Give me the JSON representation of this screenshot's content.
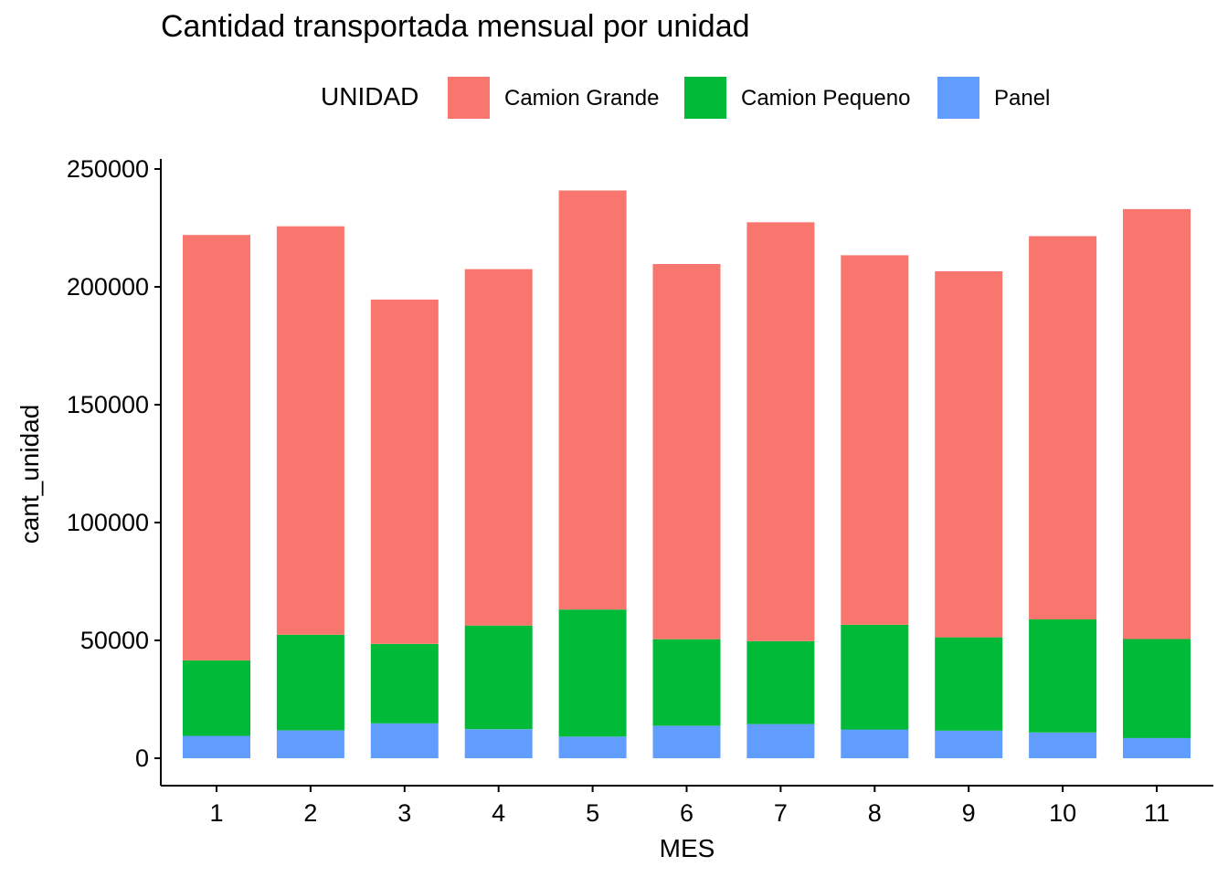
{
  "chart_data": {
    "type": "bar",
    "stacked": true,
    "title": "Cantidad transportada mensual por unidad",
    "xlabel": "MES",
    "ylabel": "cant_unidad",
    "categories": [
      "1",
      "2",
      "3",
      "4",
      "5",
      "6",
      "7",
      "8",
      "9",
      "10",
      "11"
    ],
    "ylim": [
      0,
      250000
    ],
    "yticks": [
      "0",
      "50000",
      "100000",
      "150000",
      "200000",
      "250000"
    ],
    "legend": {
      "title": "UNIDAD",
      "placement": "top",
      "entries": [
        "Camion Grande",
        "Camion Pequeno",
        "Panel"
      ]
    },
    "series": [
      {
        "name": "Panel",
        "color": "#619CFF",
        "values": [
          9500,
          11800,
          14800,
          12300,
          9200,
          13800,
          14500,
          12200,
          11700,
          10900,
          8600
        ]
      },
      {
        "name": "Camion Pequeno",
        "color": "#00BA38",
        "values": [
          32000,
          40600,
          33700,
          44000,
          53900,
          36700,
          35200,
          44400,
          39600,
          48000,
          42000
        ]
      },
      {
        "name": "Camion Grande",
        "color": "#F8766D",
        "values": [
          180500,
          173300,
          146100,
          151200,
          177800,
          159200,
          177700,
          156800,
          155300,
          162600,
          182400
        ]
      }
    ],
    "grid": false
  }
}
